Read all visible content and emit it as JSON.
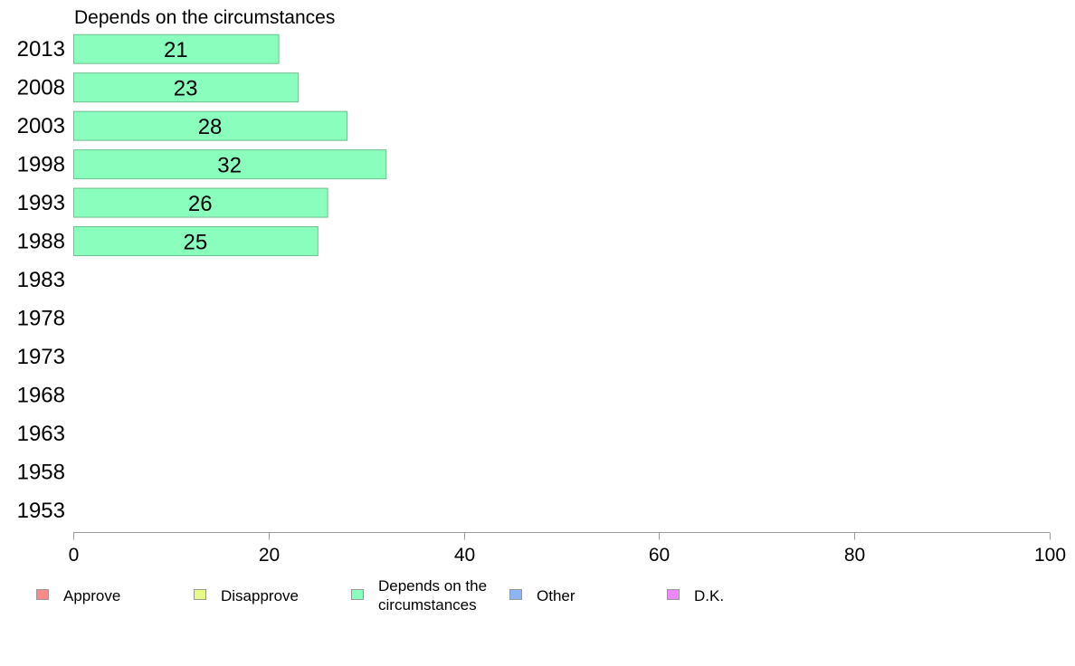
{
  "chart_data": {
    "type": "bar",
    "orientation": "horizontal",
    "title": "Depends on the circumstances",
    "categories": [
      "2013",
      "2008",
      "2003",
      "1998",
      "1993",
      "1988",
      "1983",
      "1978",
      "1973",
      "1968",
      "1963",
      "1958",
      "1953"
    ],
    "series": [
      {
        "name": "Depends on the circumstances",
        "color": "#8affbd",
        "values": [
          21,
          23,
          28,
          32,
          26,
          25,
          null,
          null,
          null,
          null,
          null,
          null,
          null
        ]
      }
    ],
    "xlim": [
      0,
      100
    ],
    "x_ticks": [
      0,
      20,
      40,
      60,
      80,
      100
    ],
    "grid": false,
    "legend_position": "bottom",
    "legend": [
      {
        "label": "Approve",
        "color": "#f88a8a"
      },
      {
        "label": "Disapprove",
        "color": "#e6fa8a"
      },
      {
        "label": "Depends on the circumstances",
        "label_lines": [
          "Depends on the",
          "circumstances"
        ],
        "color": "#8affbd"
      },
      {
        "label": "Other",
        "color": "#8ab6f8"
      },
      {
        "label": "D.K.",
        "color": "#ee8af8"
      }
    ]
  }
}
